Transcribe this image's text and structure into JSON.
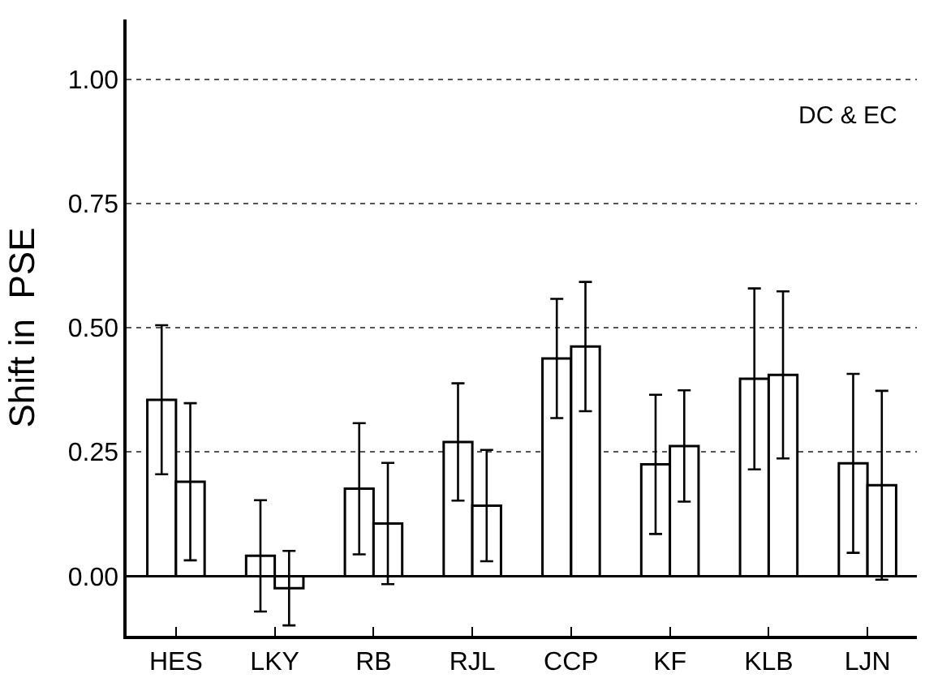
{
  "chart_data": {
    "type": "bar",
    "ylabel": "Shift in  PSE",
    "annotations": [
      "DC & EC"
    ],
    "categories": [
      "HES",
      "LKY",
      "RB",
      "RJL",
      "CCP",
      "KF",
      "KLB",
      "LJN"
    ],
    "series": [
      {
        "color": "#ffffff",
        "values": [
          0.355,
          0.041,
          0.176,
          0.27,
          0.438,
          0.225,
          0.397,
          0.227
        ],
        "errors": [
          0.15,
          0.112,
          0.132,
          0.118,
          0.12,
          0.14,
          0.182,
          0.18
        ]
      },
      {
        "color": "#ffffff",
        "values": [
          0.19,
          -0.024,
          0.106,
          0.142,
          0.462,
          0.262,
          0.405,
          0.183
        ],
        "errors": [
          0.158,
          0.075,
          0.122,
          0.112,
          0.13,
          0.112,
          0.168,
          0.19
        ]
      }
    ],
    "ylim": [
      -0.12,
      1.12
    ],
    "yticks": [
      {
        "value": 0,
        "label": "0.00"
      },
      {
        "value": 0.25,
        "label": "0.25"
      },
      {
        "value": 0.5,
        "label": "0.50"
      },
      {
        "value": 0.75,
        "label": "0.75"
      },
      {
        "value": 1,
        "label": "1.00"
      }
    ],
    "ref_lines": [
      {
        "axis": "y",
        "value": 0,
        "color": "#000000"
      }
    ],
    "grid": "y"
  }
}
